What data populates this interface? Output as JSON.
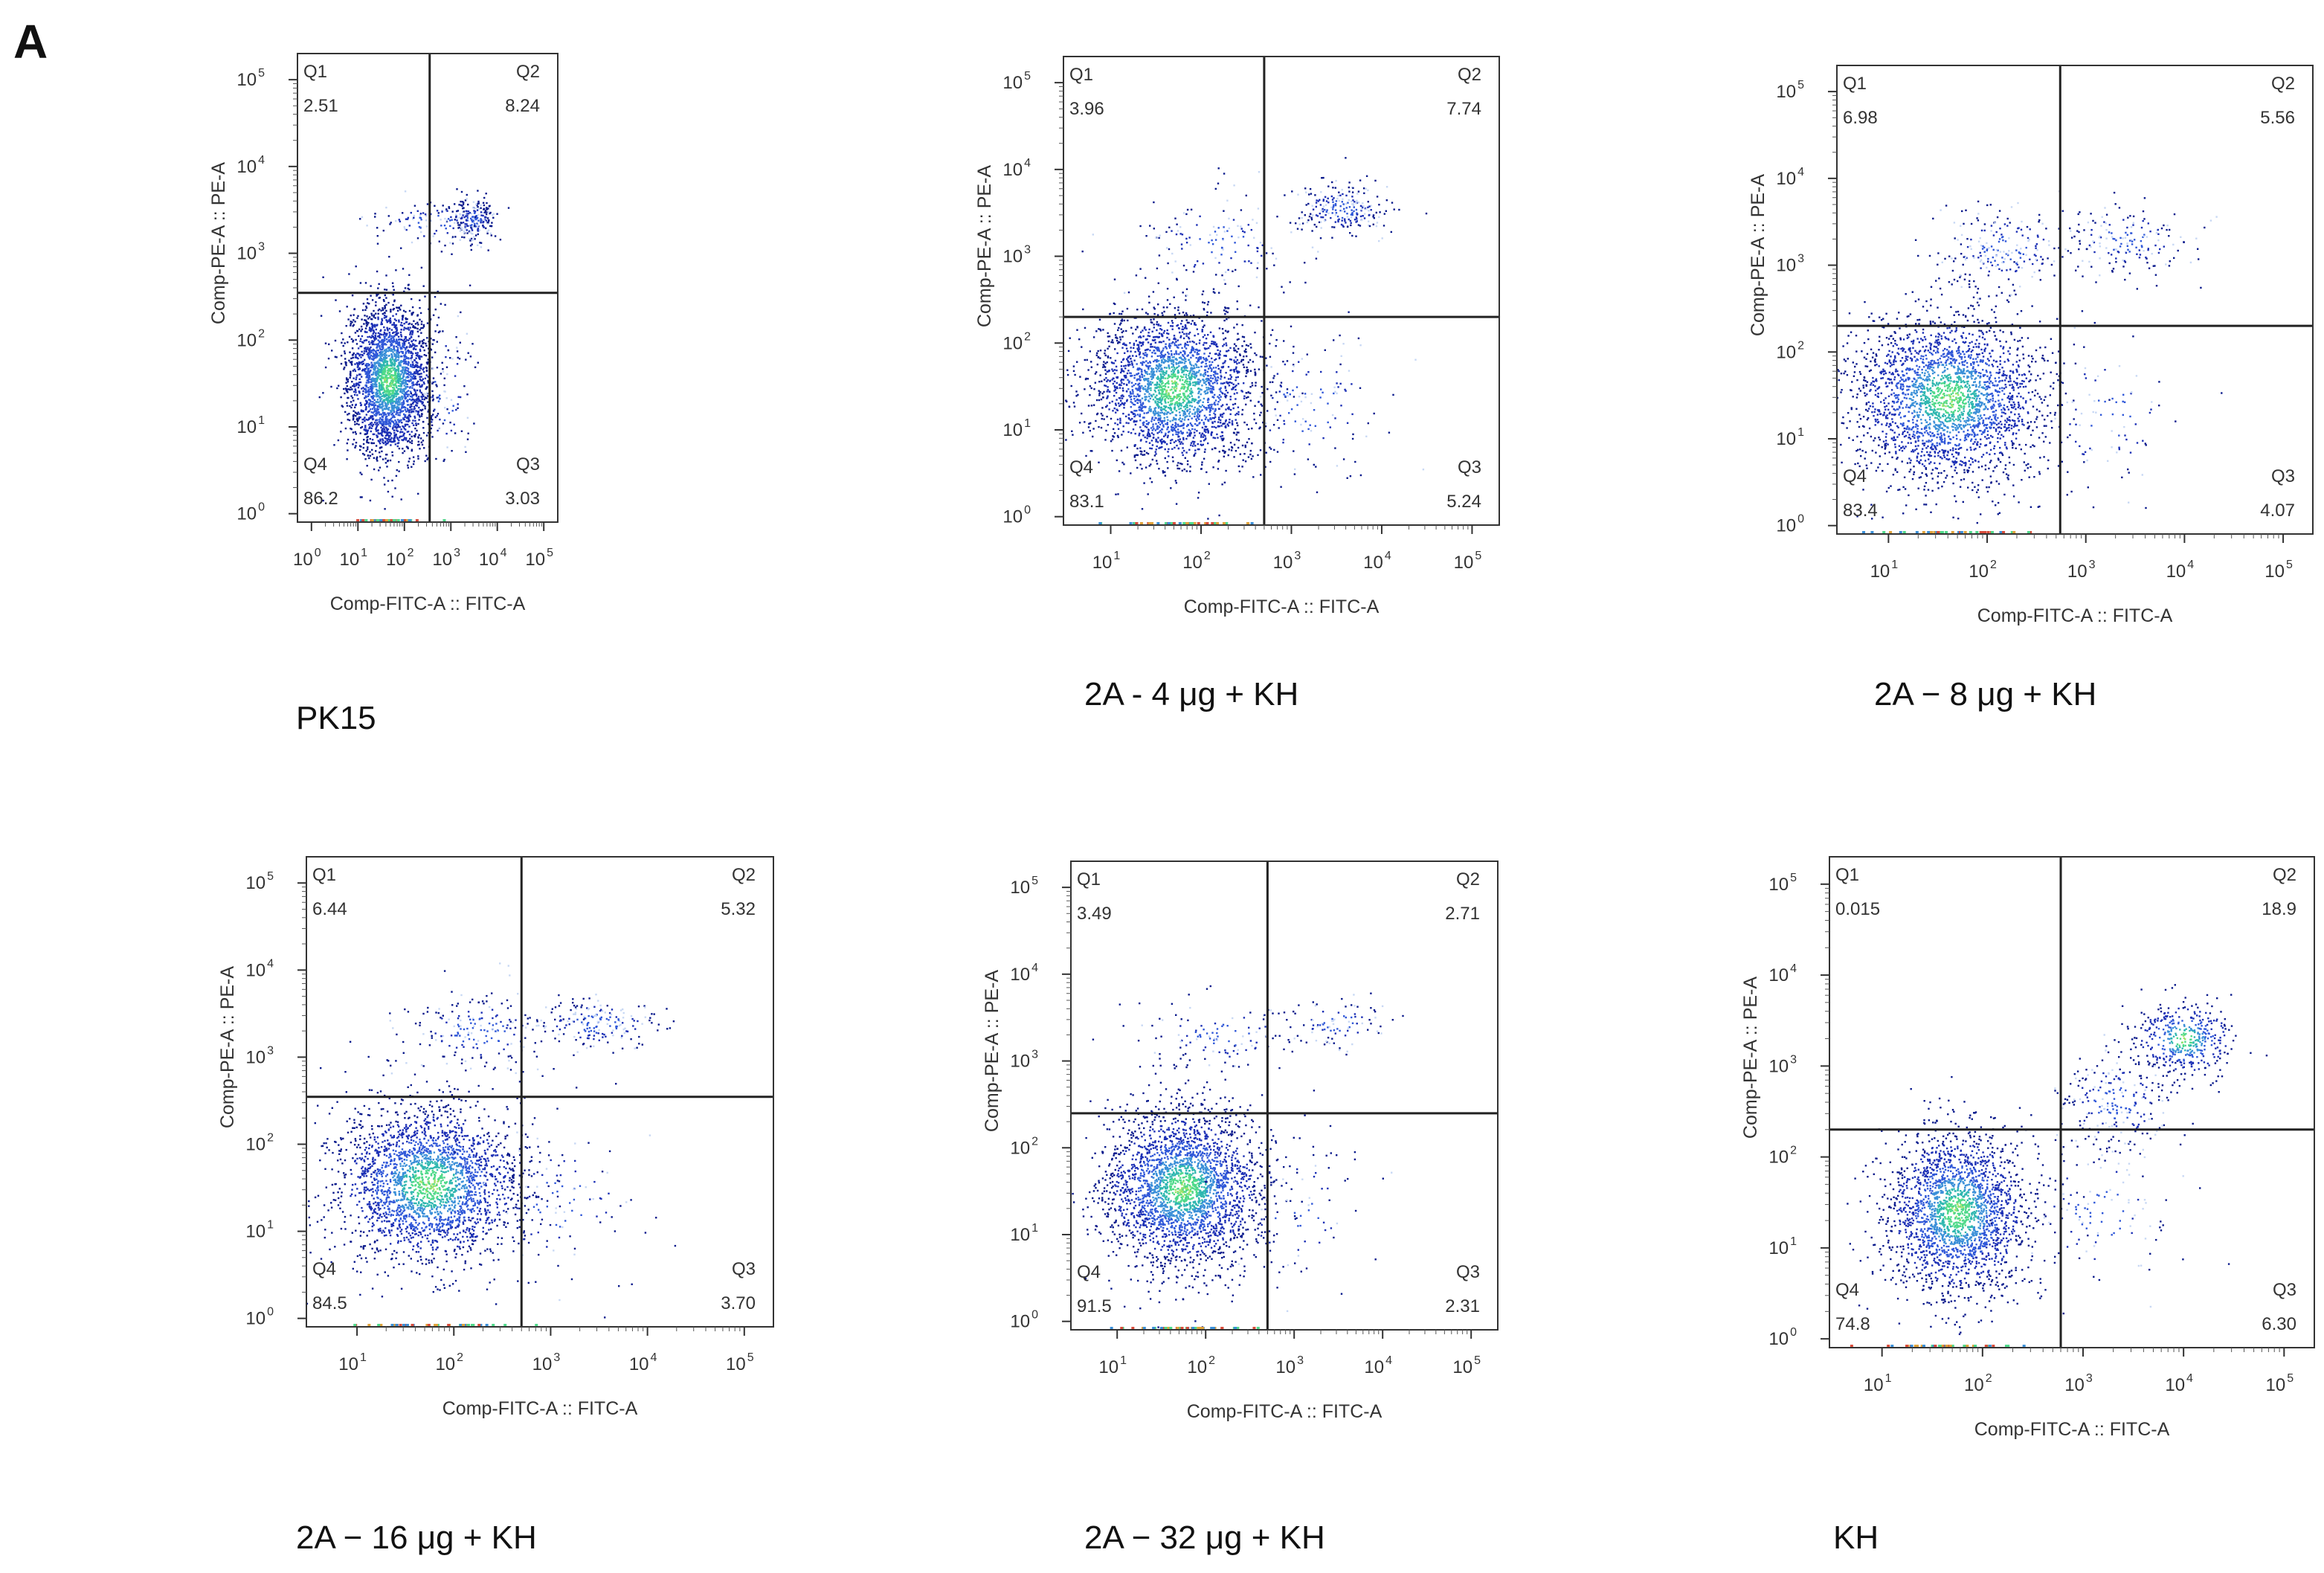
{
  "figure": {
    "panel_label": "A",
    "dot_colors": [
      "#0a1a8c",
      "#1b2fb5",
      "#2f57d8",
      "#3a8fd8",
      "#2fb7b0",
      "#4fd98a",
      "#9fe36a",
      "#c8d8f4"
    ],
    "gate_color": "#222222",
    "frame_color": "#333333"
  },
  "chart_data": [
    {
      "type": "scatter",
      "title": "PK15",
      "xlabel": "Comp-FITC-A :: FITC-A",
      "ylabel": "Comp-PE-A :: PE-A",
      "xscale": "log",
      "yscale": "log",
      "xlim": [
        0.5,
        200000
      ],
      "ylim": [
        0.8,
        200000
      ],
      "xticks": [
        {
          "value": 1,
          "mant": "10",
          "exp": "0"
        },
        {
          "value": 10,
          "mant": "10",
          "exp": "1"
        },
        {
          "value": 100,
          "mant": "10",
          "exp": "2"
        },
        {
          "value": 1000,
          "mant": "10",
          "exp": "3"
        },
        {
          "value": 10000,
          "mant": "10",
          "exp": "4"
        },
        {
          "value": 100000,
          "mant": "10",
          "exp": "5"
        }
      ],
      "yticks": [
        {
          "value": 1,
          "mant": "10",
          "exp": "0"
        },
        {
          "value": 10,
          "mant": "10",
          "exp": "1"
        },
        {
          "value": 100,
          "mant": "10",
          "exp": "2"
        },
        {
          "value": 1000,
          "mant": "10",
          "exp": "3"
        },
        {
          "value": 10000,
          "mant": "10",
          "exp": "4"
        },
        {
          "value": 100000,
          "mant": "10",
          "exp": "5"
        }
      ],
      "gate": {
        "x": 350,
        "y": 350
      },
      "quadrants": [
        {
          "name": "Q1",
          "value": "2.51"
        },
        {
          "name": "Q2",
          "value": "8.24"
        },
        {
          "name": "Q3",
          "value": "3.03"
        },
        {
          "name": "Q4",
          "value": "86.2"
        }
      ],
      "populations": [
        {
          "cx": 45,
          "cy": 35,
          "sx": 0.45,
          "sy": 0.45,
          "n": 2600
        },
        {
          "cx": 3000,
          "cy": 2500,
          "sx": 0.22,
          "sy": 0.12,
          "n": 220
        },
        {
          "cx": 400,
          "cy": 2300,
          "sx": 0.65,
          "sy": 0.13,
          "n": 110
        },
        {
          "cx": 700,
          "cy": 25,
          "sx": 0.35,
          "sy": 0.45,
          "n": 90
        }
      ]
    },
    {
      "type": "scatter",
      "title": "2A - 4 μg + KH",
      "xlabel": "Comp-FITC-A :: FITC-A",
      "ylabel": "Comp-PE-A :: PE-A",
      "xscale": "log",
      "yscale": "log",
      "xlim": [
        3,
        200000
      ],
      "ylim": [
        0.8,
        200000
      ],
      "xticks": [
        {
          "value": 10,
          "mant": "10",
          "exp": "1"
        },
        {
          "value": 100,
          "mant": "10",
          "exp": "2"
        },
        {
          "value": 1000,
          "mant": "10",
          "exp": "3"
        },
        {
          "value": 10000,
          "mant": "10",
          "exp": "4"
        },
        {
          "value": 100000,
          "mant": "10",
          "exp": "5"
        }
      ],
      "yticks": [
        {
          "value": 1,
          "mant": "10",
          "exp": "0"
        },
        {
          "value": 10,
          "mant": "10",
          "exp": "1"
        },
        {
          "value": 100,
          "mant": "10",
          "exp": "2"
        },
        {
          "value": 1000,
          "mant": "10",
          "exp": "3"
        },
        {
          "value": 10000,
          "mant": "10",
          "exp": "4"
        },
        {
          "value": 100000,
          "mant": "10",
          "exp": "5"
        }
      ],
      "gate": {
        "x": 500,
        "y": 200
      },
      "quadrants": [
        {
          "name": "Q1",
          "value": "3.96"
        },
        {
          "name": "Q2",
          "value": "7.74"
        },
        {
          "name": "Q3",
          "value": "5.24"
        },
        {
          "name": "Q4",
          "value": "83.1"
        }
      ],
      "populations": [
        {
          "cx": 50,
          "cy": 30,
          "sx": 0.45,
          "sy": 0.45,
          "n": 2500
        },
        {
          "cx": 3500,
          "cy": 3500,
          "sx": 0.28,
          "sy": 0.15,
          "n": 240
        },
        {
          "cx": 150,
          "cy": 1500,
          "sx": 0.45,
          "sy": 0.28,
          "n": 140
        },
        {
          "cx": 1500,
          "cy": 20,
          "sx": 0.45,
          "sy": 0.45,
          "n": 130
        }
      ]
    },
    {
      "type": "scatter",
      "title": "2A − 8 μg + KH",
      "xlabel": "Comp-FITC-A :: FITC-A",
      "ylabel": "Comp-PE-A :: PE-A",
      "xscale": "log",
      "yscale": "log",
      "xlim": [
        3,
        200000
      ],
      "ylim": [
        0.8,
        200000
      ],
      "xticks": [
        {
          "value": 10,
          "mant": "10",
          "exp": "1"
        },
        {
          "value": 100,
          "mant": "10",
          "exp": "2"
        },
        {
          "value": 1000,
          "mant": "10",
          "exp": "3"
        },
        {
          "value": 10000,
          "mant": "10",
          "exp": "4"
        },
        {
          "value": 100000,
          "mant": "10",
          "exp": "5"
        }
      ],
      "yticks": [
        {
          "value": 1,
          "mant": "10",
          "exp": "0"
        },
        {
          "value": 10,
          "mant": "10",
          "exp": "1"
        },
        {
          "value": 100,
          "mant": "10",
          "exp": "2"
        },
        {
          "value": 1000,
          "mant": "10",
          "exp": "3"
        },
        {
          "value": 10000,
          "mant": "10",
          "exp": "4"
        },
        {
          "value": 100000,
          "mant": "10",
          "exp": "5"
        }
      ],
      "gate": {
        "x": 550,
        "y": 200
      },
      "quadrants": [
        {
          "name": "Q1",
          "value": "6.98"
        },
        {
          "name": "Q2",
          "value": "5.56"
        },
        {
          "name": "Q3",
          "value": "4.07"
        },
        {
          "name": "Q4",
          "value": "83.4"
        }
      ],
      "populations": [
        {
          "cx": 40,
          "cy": 30,
          "sx": 0.48,
          "sy": 0.48,
          "n": 2500
        },
        {
          "cx": 2500,
          "cy": 2000,
          "sx": 0.35,
          "sy": 0.2,
          "n": 170
        },
        {
          "cx": 150,
          "cy": 1500,
          "sx": 0.35,
          "sy": 0.25,
          "n": 220
        },
        {
          "cx": 1500,
          "cy": 20,
          "sx": 0.4,
          "sy": 0.45,
          "n": 100
        }
      ]
    },
    {
      "type": "scatter",
      "title": "2A − 16 μg + KH",
      "xlabel": "Comp-FITC-A :: FITC-A",
      "ylabel": "Comp-PE-A :: PE-A",
      "xscale": "log",
      "yscale": "log",
      "xlim": [
        3,
        200000
      ],
      "ylim": [
        0.8,
        200000
      ],
      "xticks": [
        {
          "value": 10,
          "mant": "10",
          "exp": "1"
        },
        {
          "value": 100,
          "mant": "10",
          "exp": "2"
        },
        {
          "value": 1000,
          "mant": "10",
          "exp": "3"
        },
        {
          "value": 10000,
          "mant": "10",
          "exp": "4"
        },
        {
          "value": 100000,
          "mant": "10",
          "exp": "5"
        }
      ],
      "yticks": [
        {
          "value": 1,
          "mant": "10",
          "exp": "0"
        },
        {
          "value": 10,
          "mant": "10",
          "exp": "1"
        },
        {
          "value": 100,
          "mant": "10",
          "exp": "2"
        },
        {
          "value": 1000,
          "mant": "10",
          "exp": "3"
        },
        {
          "value": 10000,
          "mant": "10",
          "exp": "4"
        },
        {
          "value": 100000,
          "mant": "10",
          "exp": "5"
        }
      ],
      "gate": {
        "x": 500,
        "y": 350
      },
      "quadrants": [
        {
          "name": "Q1",
          "value": "6.44"
        },
        {
          "name": "Q2",
          "value": "5.32"
        },
        {
          "name": "Q3",
          "value": "3.70"
        },
        {
          "name": "Q4",
          "value": "84.5"
        }
      ],
      "populations": [
        {
          "cx": 55,
          "cy": 35,
          "sx": 0.48,
          "sy": 0.45,
          "n": 2500
        },
        {
          "cx": 3000,
          "cy": 2500,
          "sx": 0.35,
          "sy": 0.16,
          "n": 180
        },
        {
          "cx": 180,
          "cy": 2000,
          "sx": 0.4,
          "sy": 0.22,
          "n": 200
        },
        {
          "cx": 1200,
          "cy": 20,
          "sx": 0.45,
          "sy": 0.45,
          "n": 100
        }
      ]
    },
    {
      "type": "scatter",
      "title": "2A − 32 μg + KH",
      "xlabel": "Comp-FITC-A :: FITC-A",
      "ylabel": "Comp-PE-A :: PE-A",
      "xscale": "log",
      "yscale": "log",
      "xlim": [
        3,
        200000
      ],
      "ylim": [
        0.8,
        200000
      ],
      "xticks": [
        {
          "value": 10,
          "mant": "10",
          "exp": "1"
        },
        {
          "value": 100,
          "mant": "10",
          "exp": "2"
        },
        {
          "value": 1000,
          "mant": "10",
          "exp": "3"
        },
        {
          "value": 10000,
          "mant": "10",
          "exp": "4"
        },
        {
          "value": 100000,
          "mant": "10",
          "exp": "5"
        }
      ],
      "yticks": [
        {
          "value": 1,
          "mant": "10",
          "exp": "0"
        },
        {
          "value": 10,
          "mant": "10",
          "exp": "1"
        },
        {
          "value": 100,
          "mant": "10",
          "exp": "2"
        },
        {
          "value": 1000,
          "mant": "10",
          "exp": "3"
        },
        {
          "value": 10000,
          "mant": "10",
          "exp": "4"
        },
        {
          "value": 100000,
          "mant": "10",
          "exp": "5"
        }
      ],
      "gate": {
        "x": 500,
        "y": 250
      },
      "quadrants": [
        {
          "name": "Q1",
          "value": "3.49"
        },
        {
          "name": "Q2",
          "value": "2.71"
        },
        {
          "name": "Q3",
          "value": "2.31"
        },
        {
          "name": "Q4",
          "value": "91.5"
        }
      ],
      "populations": [
        {
          "cx": 55,
          "cy": 35,
          "sx": 0.45,
          "sy": 0.45,
          "n": 2700
        },
        {
          "cx": 3000,
          "cy": 2800,
          "sx": 0.3,
          "sy": 0.14,
          "n": 90
        },
        {
          "cx": 150,
          "cy": 2000,
          "sx": 0.45,
          "sy": 0.2,
          "n": 120
        },
        {
          "cx": 1000,
          "cy": 20,
          "sx": 0.4,
          "sy": 0.45,
          "n": 70
        }
      ]
    },
    {
      "type": "scatter",
      "title": "KH",
      "xlabel": "Comp-FITC-A :: FITC-A",
      "ylabel": "Comp-PE-A :: PE-A",
      "xscale": "log",
      "yscale": "log",
      "xlim": [
        3,
        200000
      ],
      "ylim": [
        0.8,
        200000
      ],
      "xticks": [
        {
          "value": 10,
          "mant": "10",
          "exp": "1"
        },
        {
          "value": 100,
          "mant": "10",
          "exp": "2"
        },
        {
          "value": 1000,
          "mant": "10",
          "exp": "3"
        },
        {
          "value": 10000,
          "mant": "10",
          "exp": "4"
        },
        {
          "value": 100000,
          "mant": "10",
          "exp": "5"
        }
      ],
      "yticks": [
        {
          "value": 1,
          "mant": "10",
          "exp": "0"
        },
        {
          "value": 10,
          "mant": "10",
          "exp": "1"
        },
        {
          "value": 100,
          "mant": "10",
          "exp": "2"
        },
        {
          "value": 1000,
          "mant": "10",
          "exp": "3"
        },
        {
          "value": 10000,
          "mant": "10",
          "exp": "4"
        },
        {
          "value": 100000,
          "mant": "10",
          "exp": "5"
        }
      ],
      "gate": {
        "x": 600,
        "y": 200
      },
      "quadrants": [
        {
          "name": "Q1",
          "value": "0.015"
        },
        {
          "name": "Q2",
          "value": "18.9"
        },
        {
          "name": "Q3",
          "value": "6.30"
        },
        {
          "name": "Q4",
          "value": "74.8"
        }
      ],
      "populations": [
        {
          "cx": 55,
          "cy": 25,
          "sx": 0.35,
          "sy": 0.45,
          "n": 2200
        },
        {
          "cx": 10000,
          "cy": 2000,
          "sx": 0.25,
          "sy": 0.2,
          "n": 420
        },
        {
          "cx": 2000,
          "cy": 400,
          "sx": 0.3,
          "sy": 0.3,
          "n": 230
        },
        {
          "cx": 1500,
          "cy": 25,
          "sx": 0.4,
          "sy": 0.45,
          "n": 120
        }
      ]
    }
  ]
}
